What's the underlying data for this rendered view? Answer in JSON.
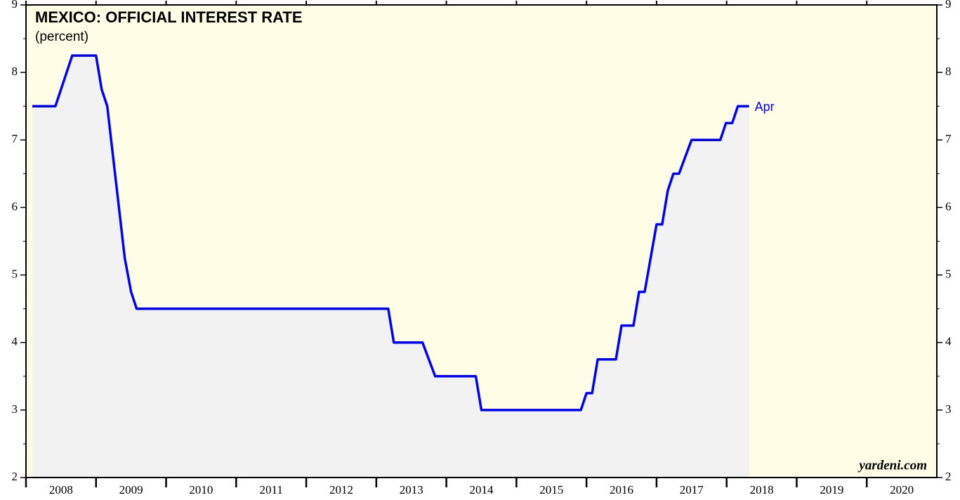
{
  "chart_data": {
    "type": "line",
    "title": "MEXICO: OFFICIAL INTEREST RATE",
    "subtitle": "(percent)",
    "annotation": "Apr",
    "source": "yardeni.com",
    "x": [
      2008.09,
      2008.42,
      2008.66,
      2009.0,
      2009.08,
      2009.16,
      2009.41,
      2009.5,
      2009.58,
      2013.17,
      2013.25,
      2013.66,
      2013.84,
      2014.42,
      2014.5,
      2015.92,
      2016.0,
      2016.08,
      2016.16,
      2016.42,
      2016.5,
      2016.67,
      2016.75,
      2016.83,
      2017.0,
      2017.08,
      2017.16,
      2017.24,
      2017.32,
      2017.5,
      2017.91,
      2017.99,
      2018.08,
      2018.16,
      2018.32
    ],
    "series": [
      {
        "name": "Official interest rate",
        "color": "#0000ff",
        "values": [
          7.5,
          7.5,
          8.25,
          8.25,
          7.75,
          7.5,
          5.25,
          4.75,
          4.5,
          4.5,
          4.0,
          4.0,
          3.5,
          3.5,
          3.0,
          3.0,
          3.25,
          3.25,
          3.75,
          3.75,
          4.25,
          4.25,
          4.75,
          4.75,
          5.75,
          5.75,
          6.25,
          6.5,
          6.5,
          7.0,
          7.0,
          7.25,
          7.25,
          7.5,
          7.5
        ]
      }
    ],
    "area_color": "#f2f2f2",
    "background": "#fffde6",
    "xlim": [
      2008,
      2021
    ],
    "xticks": [
      2008,
      2009,
      2010,
      2011,
      2012,
      2013,
      2014,
      2015,
      2016,
      2017,
      2018,
      2019,
      2020
    ],
    "ylim": [
      2,
      9
    ],
    "yticks": [
      2,
      3,
      4,
      5,
      6,
      7,
      8,
      9
    ]
  }
}
